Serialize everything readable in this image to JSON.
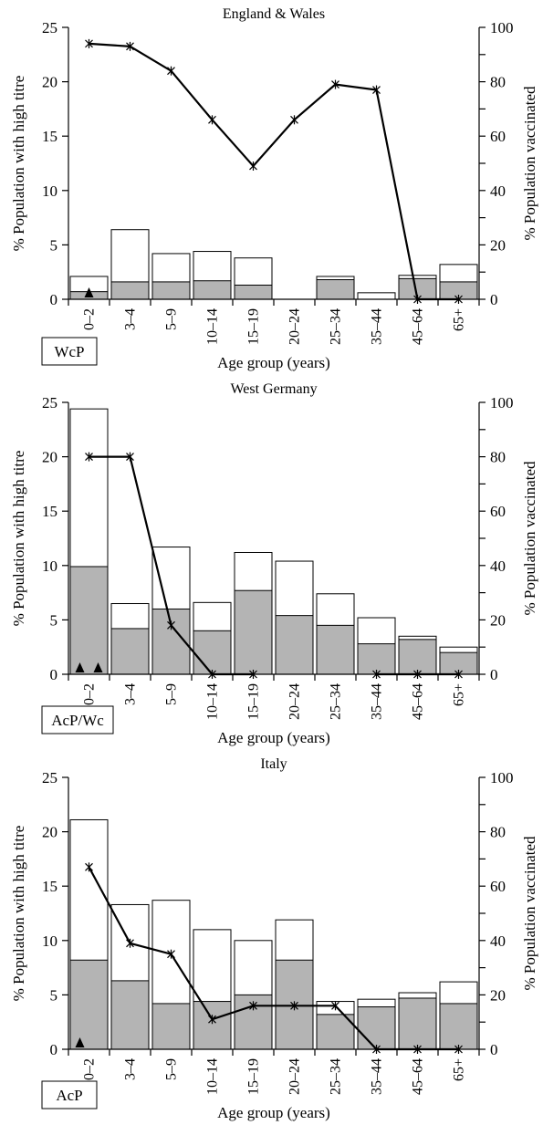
{
  "figure": {
    "colors": {
      "total_bar": "#ffffff",
      "vaccinated_bar": "#b4b4b4",
      "line": "#000000",
      "axis": "#000000"
    }
  },
  "chart_data": [
    {
      "type": "bar",
      "title": "England & Wales",
      "xlabel": "Age group (years)",
      "ylabel": "% Population with high titre",
      "y2label": "% Population vaccinated",
      "ylim": [
        0,
        25
      ],
      "y2lim": [
        0,
        100
      ],
      "yticks": [
        "0",
        "5",
        "10",
        "15",
        "20",
        "25"
      ],
      "y2ticks": [
        "0",
        "20",
        "40",
        "60",
        "80",
        "100"
      ],
      "categories": [
        "0–2",
        "3–4",
        "5–9",
        "10–14",
        "15–19",
        "20–24",
        "25–34",
        "35–44",
        "45–64",
        "65+"
      ],
      "series": [
        {
          "kind": "bar-outline",
          "values": [
            2.1,
            6.4,
            4.2,
            4.4,
            3.8,
            0,
            2.1,
            0.6,
            2.2,
            3.2
          ]
        },
        {
          "kind": "bar-filled",
          "values": [
            0.7,
            1.6,
            1.6,
            1.7,
            1.3,
            0,
            1.8,
            0,
            1.9,
            1.6
          ]
        },
        {
          "kind": "line",
          "axis": "right",
          "values": [
            94,
            93,
            84,
            66,
            49,
            66,
            79,
            77,
            0,
            0
          ]
        }
      ],
      "annotations": [
        {
          "text": "WcP",
          "categories": [
            "0–2"
          ]
        }
      ]
    },
    {
      "type": "bar",
      "title": "West Germany",
      "xlabel": "Age group (years)",
      "ylabel": "% Population with high titre",
      "y2label": "% Population vaccinated",
      "ylim": [
        0,
        25
      ],
      "y2lim": [
        0,
        100
      ],
      "yticks": [
        "0",
        "5",
        "10",
        "15",
        "20",
        "25"
      ],
      "y2ticks": [
        "0",
        "20",
        "40",
        "60",
        "80",
        "100"
      ],
      "categories": [
        "0–2",
        "3–4",
        "5–9",
        "10–14",
        "15–19",
        "20–24",
        "25–34",
        "35–44",
        "45–64",
        "65+"
      ],
      "series": [
        {
          "kind": "bar-outline",
          "values": [
            24.4,
            6.5,
            11.7,
            6.6,
            11.2,
            10.4,
            7.4,
            5.2,
            3.5,
            2.5
          ]
        },
        {
          "kind": "bar-filled",
          "values": [
            9.9,
            4.2,
            6.0,
            4.0,
            7.7,
            5.4,
            4.5,
            2.8,
            3.2,
            2.0
          ]
        },
        {
          "kind": "line",
          "axis": "right",
          "values": [
            80,
            80,
            18,
            0,
            0,
            null,
            null,
            0,
            0,
            0
          ]
        }
      ],
      "annotations": [
        {
          "text": "AcP/Wc",
          "categories": [
            "0–2"
          ]
        }
      ]
    },
    {
      "type": "bar",
      "title": "Italy",
      "xlabel": "Age group (years)",
      "ylabel": "% Population with high titre",
      "y2label": "% Population vaccinated",
      "ylim": [
        0,
        25
      ],
      "y2lim": [
        0,
        100
      ],
      "yticks": [
        "0",
        "5",
        "10",
        "15",
        "20",
        "25"
      ],
      "y2ticks": [
        "0",
        "20",
        "40",
        "60",
        "80",
        "100"
      ],
      "categories": [
        "0–2",
        "3–4",
        "5–9",
        "10–14",
        "15–19",
        "20–24",
        "25–34",
        "35–44",
        "45–64",
        "65+"
      ],
      "series": [
        {
          "kind": "bar-outline",
          "values": [
            21.1,
            13.3,
            13.7,
            11.0,
            10.0,
            11.9,
            4.4,
            4.6,
            5.2,
            6.2
          ]
        },
        {
          "kind": "bar-filled",
          "values": [
            8.2,
            6.3,
            4.2,
            4.4,
            5.0,
            8.2,
            3.2,
            3.9,
            4.7,
            4.2
          ]
        },
        {
          "kind": "line",
          "axis": "right",
          "values": [
            67,
            39,
            35,
            11,
            16,
            16,
            16,
            0,
            0,
            0
          ]
        }
      ],
      "annotations": [
        {
          "text": "AcP",
          "categories": [
            "0–2"
          ]
        }
      ]
    }
  ]
}
